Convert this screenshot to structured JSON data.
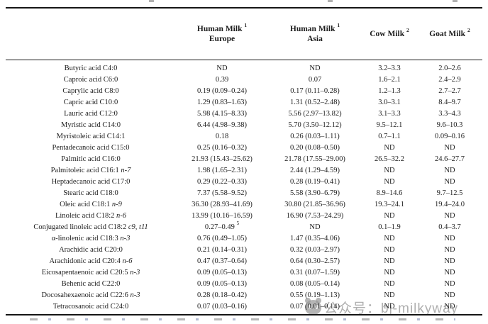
{
  "header": {
    "name_col": "",
    "cols": [
      {
        "title": "Human Milk",
        "sup": "1",
        "sub": "Europe"
      },
      {
        "title": "Human Milk",
        "sup": "1",
        "sub": "Asia"
      },
      {
        "title": "Cow Milk",
        "sup": "2",
        "sub": ""
      },
      {
        "title": "Goat Milk",
        "sup": "2",
        "sub": ""
      }
    ]
  },
  "table": {
    "rows": [
      {
        "name": "Butyric acid C4:0",
        "italic": "",
        "eu": "ND",
        "eu_sup": "",
        "asia": "ND",
        "cow": "3.2–3.3",
        "goat": "2.0–2.6"
      },
      {
        "name": "Caproic acid C6:0",
        "italic": "",
        "eu": "0.39",
        "eu_sup": "",
        "asia": "0.07",
        "cow": "1.6–2.1",
        "goat": "2.4–2.9"
      },
      {
        "name": "Caprylic acid C8:0",
        "italic": "",
        "eu": "0.19 (0.09–0.24)",
        "eu_sup": "",
        "asia": "0.17 (0.11–0.28)",
        "cow": "1.2–1.3",
        "goat": "2.7–2.7"
      },
      {
        "name": "Capric acid C10:0",
        "italic": "",
        "eu": "1.29 (0.83–1.63)",
        "eu_sup": "",
        "asia": "1.31 (0.52–2.48)",
        "cow": "3.0–3.1",
        "goat": "8.4–9.7"
      },
      {
        "name": "Lauric acid C12:0",
        "italic": "",
        "eu": "5.98 (4.15–8.33)",
        "eu_sup": "",
        "asia": "5.56 (2.97–13.82)",
        "cow": "3.1–3.3",
        "goat": "3.3–4.3"
      },
      {
        "name": "Myristic acid C14:0",
        "italic": "",
        "eu": "6.44 (4.98–9.38)",
        "eu_sup": "",
        "asia": "5.70 (3.50–12.12)",
        "cow": "9.5–12.1",
        "goat": "9.6–10.3"
      },
      {
        "name": "Myristoleic acid C14:1",
        "italic": "",
        "eu": "0.18",
        "eu_sup": "",
        "asia": "0.26 (0.03–1.11)",
        "cow": "0.7–1.1",
        "goat": "0.09–0.16"
      },
      {
        "name": "Pentadecanoic acid C15:0",
        "italic": "",
        "eu": "0.25 (0.16–0.32)",
        "eu_sup": "",
        "asia": "0.20 (0.08–0.50)",
        "cow": "ND",
        "goat": "ND"
      },
      {
        "name": "Palmitic acid C16:0",
        "italic": "",
        "eu": "21.93 (15.43–25.62)",
        "eu_sup": "",
        "asia": "21.78 (17.55–29.00)",
        "cow": "26.5–32.2",
        "goat": "24.6–27.7"
      },
      {
        "name": "Palmitoleic acid C16:1",
        "italic": "n-7",
        "eu": "1.98 (1.65–2.31)",
        "eu_sup": "",
        "asia": "2.44 (1.29–4.59)",
        "cow": "ND",
        "goat": "ND"
      },
      {
        "name": "Heptadecanoic acid C17:0",
        "italic": "",
        "eu": "0.29 (0.22–0.33)",
        "eu_sup": "",
        "asia": "0.28 (0.19–0.41)",
        "cow": "ND",
        "goat": "ND"
      },
      {
        "name": "Stearic acid C18:0",
        "italic": "",
        "eu": "7.37 (5.58–9.52)",
        "eu_sup": "",
        "asia": "5.58 (3.90–6.79)",
        "cow": "8.9–14.6",
        "goat": "9.7–12.5"
      },
      {
        "name": "Oleic acid C18:1",
        "italic": "n-9",
        "eu": "36.30 (28.93–41.69)",
        "eu_sup": "",
        "asia": "30.80 (21.85–36.96)",
        "cow": "19.3–24.1",
        "goat": "19.4–24.0"
      },
      {
        "name": "Linoleic acid C18:2",
        "italic": "n-6",
        "eu": "13.99 (10.16–16.59)",
        "eu_sup": "",
        "asia": "16.90 (7.53–24.29)",
        "cow": "ND",
        "goat": "ND"
      },
      {
        "name": "Conjugated linoleic acid C18:2",
        "italic": "c9, t11",
        "eu": "0.27–0.49",
        "eu_sup": "5",
        "asia": "ND",
        "cow": "0.1–1.9",
        "goat": "0.4–3.7"
      },
      {
        "name": "α-linolenic acid C18:3",
        "italic": "n-3",
        "eu": "0.76 (0.49–1.05)",
        "eu_sup": "",
        "asia": "1.47 (0.35–4.06)",
        "cow": "ND",
        "goat": "ND"
      },
      {
        "name": "Arachidic acid C20:0",
        "italic": "",
        "eu": "0.21 (0.14–0.31)",
        "eu_sup": "",
        "asia": "0.32 (0.03–2.97)",
        "cow": "ND",
        "goat": "ND"
      },
      {
        "name": "Arachidonic acid C20:4",
        "italic": "n-6",
        "eu": "0.47 (0.37–0.64)",
        "eu_sup": "",
        "asia": "0.64 (0.30–2.57)",
        "cow": "ND",
        "goat": "ND"
      },
      {
        "name": "Eicosapentaenoic acid C20:5",
        "italic": "n-3",
        "eu": "0.09 (0.05–0.13)",
        "eu_sup": "",
        "asia": "0.31 (0.07–1.59)",
        "cow": "ND",
        "goat": "ND"
      },
      {
        "name": "Behenic acid C22:0",
        "italic": "",
        "eu": "0.09 (0.05–0.13)",
        "eu_sup": "",
        "asia": "0.08 (0.05–0.14)",
        "cow": "ND",
        "goat": "ND"
      },
      {
        "name": "Docosahexaenoic acid C22:6",
        "italic": "n-3",
        "eu": "0.28 (0.18–0.42)",
        "eu_sup": "",
        "asia": "0.55 (0.19–1.13)",
        "cow": "ND",
        "goat": "ND"
      },
      {
        "name": "Tetracosanoic acid C24:0",
        "italic": "",
        "eu": "0.07 (0.03–0.16)",
        "eu_sup": "",
        "asia": "0.07 (0.01–0.14)",
        "cow": "ND",
        "goat": "ND"
      }
    ]
  },
  "watermark": {
    "text": "公众号：bj-milkyway"
  },
  "colors": {
    "text": "#1c1c1c",
    "rule": "#151515",
    "watermark": "#949494",
    "background": "#ffffff"
  }
}
